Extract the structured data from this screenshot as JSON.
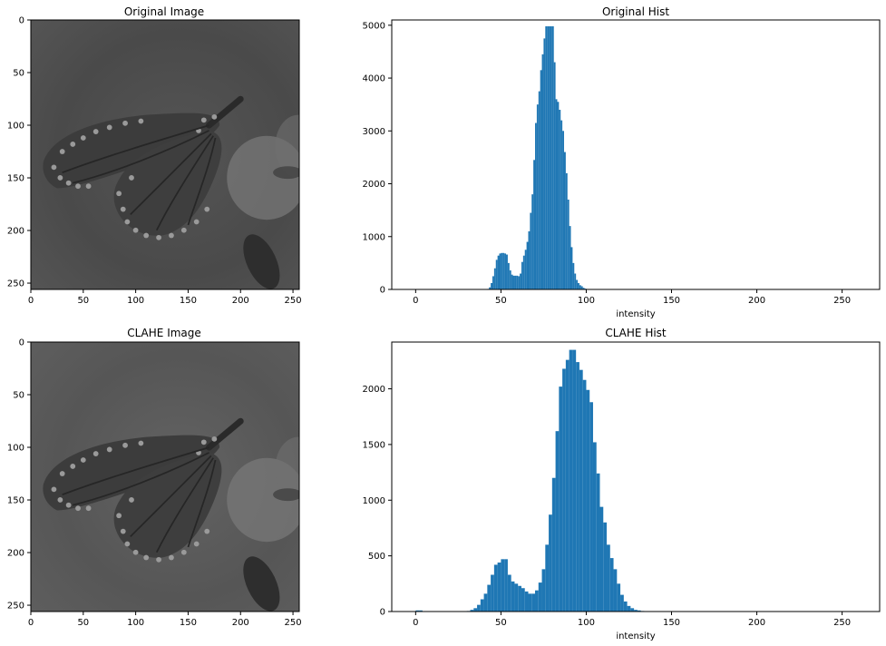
{
  "chart_data": [
    {
      "type": "image",
      "title": "Original Image",
      "xticks": [
        0,
        50,
        100,
        150,
        200,
        250
      ],
      "yticks": [
        0,
        50,
        100,
        150,
        200,
        250
      ],
      "xlim": [
        0,
        256
      ],
      "ylim": [
        256,
        0
      ],
      "image_tone": "#4d4d4d",
      "image_variant": "original"
    },
    {
      "type": "bar",
      "title": "Original Hist",
      "xlabel": "intensity",
      "xlim": [
        -14,
        272
      ],
      "ylim": [
        0,
        5100
      ],
      "xticks": [
        0,
        50,
        100,
        150,
        200,
        250
      ],
      "yticks": [
        0,
        1000,
        2000,
        3000,
        4000,
        5000
      ],
      "bin_width": 1,
      "x": [
        42,
        43,
        44,
        45,
        46,
        47,
        48,
        49,
        50,
        51,
        52,
        53,
        54,
        55,
        56,
        57,
        58,
        59,
        60,
        61,
        62,
        63,
        64,
        65,
        66,
        67,
        68,
        69,
        70,
        71,
        72,
        73,
        74,
        75,
        76,
        77,
        78,
        79,
        80,
        81,
        82,
        83,
        84,
        85,
        86,
        87,
        88,
        89,
        90,
        91,
        92,
        93,
        94,
        95,
        96,
        97,
        98,
        99,
        100,
        101
      ],
      "values": [
        10,
        40,
        120,
        250,
        400,
        560,
        640,
        680,
        690,
        690,
        680,
        660,
        500,
        360,
        280,
        260,
        260,
        260,
        250,
        300,
        520,
        640,
        750,
        900,
        1100,
        1450,
        1800,
        2450,
        3150,
        3500,
        3750,
        4150,
        4450,
        4750,
        4980,
        4980,
        4980,
        4980,
        4980,
        4300,
        3600,
        3550,
        3400,
        3200,
        3000,
        2600,
        2200,
        1700,
        1200,
        800,
        500,
        300,
        180,
        120,
        80,
        60,
        30,
        15,
        5,
        2
      ]
    },
    {
      "type": "image",
      "title": "CLAHE Image",
      "xticks": [
        0,
        50,
        100,
        150,
        200,
        250
      ],
      "yticks": [
        0,
        50,
        100,
        150,
        200,
        250
      ],
      "xlim": [
        0,
        256
      ],
      "ylim": [
        256,
        0
      ],
      "image_tone": "#5a5a5a",
      "image_variant": "clahe"
    },
    {
      "type": "bar",
      "title": "CLAHE Hist",
      "xlabel": "intensity",
      "xlim": [
        -14,
        272
      ],
      "ylim": [
        0,
        2420
      ],
      "xticks": [
        0,
        50,
        100,
        150,
        200,
        250
      ],
      "yticks": [
        0,
        500,
        1000,
        1500,
        2000
      ],
      "bin_width": 2,
      "x": [
        0,
        2,
        30,
        32,
        34,
        36,
        38,
        40,
        42,
        44,
        46,
        48,
        50,
        52,
        54,
        56,
        58,
        60,
        62,
        64,
        66,
        68,
        70,
        72,
        74,
        76,
        78,
        80,
        82,
        84,
        86,
        88,
        90,
        92,
        94,
        96,
        98,
        100,
        102,
        104,
        106,
        108,
        110,
        112,
        114,
        116,
        118,
        120,
        122,
        124,
        126,
        128,
        130,
        132,
        134
      ],
      "values": [
        10,
        10,
        5,
        15,
        30,
        60,
        110,
        160,
        240,
        330,
        420,
        440,
        470,
        470,
        330,
        270,
        250,
        230,
        210,
        180,
        160,
        160,
        190,
        260,
        380,
        600,
        870,
        1200,
        1620,
        2020,
        2180,
        2260,
        2350,
        2350,
        2240,
        2170,
        2080,
        1990,
        1880,
        1520,
        1240,
        940,
        800,
        600,
        480,
        380,
        250,
        150,
        90,
        50,
        30,
        15,
        10,
        5,
        2
      ]
    }
  ]
}
